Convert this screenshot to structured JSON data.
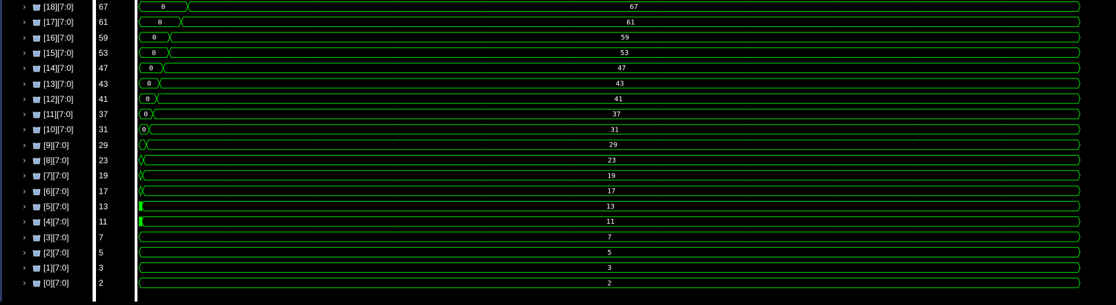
{
  "colors": {
    "waveform": "#00e600",
    "background": "#000000",
    "grid": "#7f7f7f",
    "text": "#ffffff"
  },
  "icons": {
    "expand": "chevron-right-icon",
    "bus": "bus-signal-icon"
  },
  "signals": [
    {
      "name": "[18][7:0]",
      "value": "67",
      "initial": "0",
      "transition": 0.052
    },
    {
      "name": "[17][7:0]",
      "value": "61",
      "initial": "0",
      "transition": 0.045
    },
    {
      "name": "[16][7:0]",
      "value": "59",
      "initial": "0",
      "transition": 0.033
    },
    {
      "name": "[15][7:0]",
      "value": "53",
      "initial": "0",
      "transition": 0.032
    },
    {
      "name": "[14][7:0]",
      "value": "47",
      "initial": "0",
      "transition": 0.026
    },
    {
      "name": "[13][7:0]",
      "value": "43",
      "initial": "0",
      "transition": 0.022
    },
    {
      "name": "[12][7:0]",
      "value": "41",
      "initial": "0",
      "transition": 0.019
    },
    {
      "name": "[11][7:0]",
      "value": "37",
      "initial": "0",
      "transition": 0.015
    },
    {
      "name": "[10][7:0]",
      "value": "31",
      "initial": "0",
      "transition": 0.011
    },
    {
      "name": "[9][7:0]",
      "value": "29",
      "initial": "",
      "transition": 0.008
    },
    {
      "name": "[8][7:0]",
      "value": "23",
      "initial": "",
      "transition": 0.005
    },
    {
      "name": "[7][7:0]",
      "value": "19",
      "initial": "",
      "transition": 0.004
    },
    {
      "name": "[6][7:0]",
      "value": "17",
      "initial": "",
      "transition": 0.004
    },
    {
      "name": "[5][7:0]",
      "value": "13",
      "initial": "",
      "transition": 0.002
    },
    {
      "name": "[4][7:0]",
      "value": "11",
      "initial": "",
      "transition": 0.002
    },
    {
      "name": "[3][7:0]",
      "value": "7",
      "initial": "",
      "transition": 0
    },
    {
      "name": "[2][7:0]",
      "value": "5",
      "initial": "",
      "transition": 0
    },
    {
      "name": "[1][7:0]",
      "value": "3",
      "initial": "",
      "transition": 0
    },
    {
      "name": "[0][7:0]",
      "value": "2",
      "initial": "",
      "transition": 0
    }
  ]
}
